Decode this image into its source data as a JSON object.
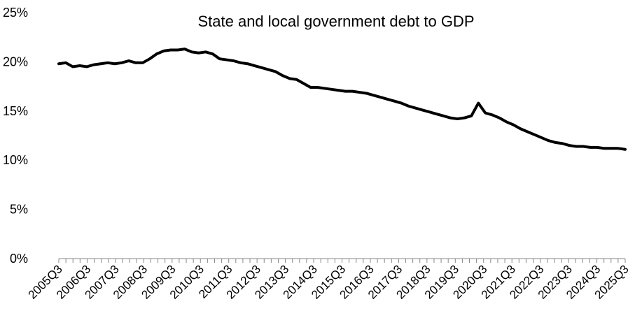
{
  "chart_data": {
    "type": "line",
    "title": "State and local government debt to GDP",
    "xlabel": "",
    "ylabel": "",
    "ylim": [
      0,
      0.25
    ],
    "y_ticks": [
      0,
      0.05,
      0.1,
      0.15,
      0.2,
      0.25
    ],
    "y_tick_labels": [
      "0%",
      "5%",
      "10%",
      "15%",
      "20%",
      "25%"
    ],
    "x_tick_labels": [
      "2005Q3",
      "2006Q3",
      "2007Q3",
      "2008Q3",
      "2009Q3",
      "2010Q3",
      "2011Q3",
      "2012Q3",
      "2013Q3",
      "2014Q3",
      "2015Q3",
      "2016Q3",
      "2017Q3",
      "2018Q3",
      "2019Q3",
      "2020Q3",
      "2021Q3",
      "2022Q3",
      "2023Q3",
      "2024Q3",
      "2025Q3"
    ],
    "x_start": "2005Q3",
    "x_end": "2025Q3",
    "grid": false,
    "series": [
      {
        "color": "#000000",
        "values": [
          0.198,
          0.199,
          0.195,
          0.196,
          0.195,
          0.197,
          0.198,
          0.199,
          0.198,
          0.199,
          0.201,
          0.199,
          0.199,
          0.203,
          0.208,
          0.211,
          0.212,
          0.212,
          0.213,
          0.21,
          0.209,
          0.21,
          0.208,
          0.203,
          0.202,
          0.201,
          0.199,
          0.198,
          0.196,
          0.194,
          0.192,
          0.19,
          0.186,
          0.183,
          0.182,
          0.178,
          0.174,
          0.174,
          0.173,
          0.172,
          0.171,
          0.17,
          0.17,
          0.169,
          0.168,
          0.166,
          0.164,
          0.162,
          0.16,
          0.158,
          0.155,
          0.153,
          0.151,
          0.149,
          0.147,
          0.145,
          0.143,
          0.142,
          0.143,
          0.145,
          0.158,
          0.148,
          0.146,
          0.143,
          0.139,
          0.136,
          0.132,
          0.129,
          0.126,
          0.123,
          0.12,
          0.118,
          0.117,
          0.115,
          0.114,
          0.114,
          0.113,
          0.113,
          0.112,
          0.112,
          0.112,
          0.111
        ]
      }
    ]
  }
}
